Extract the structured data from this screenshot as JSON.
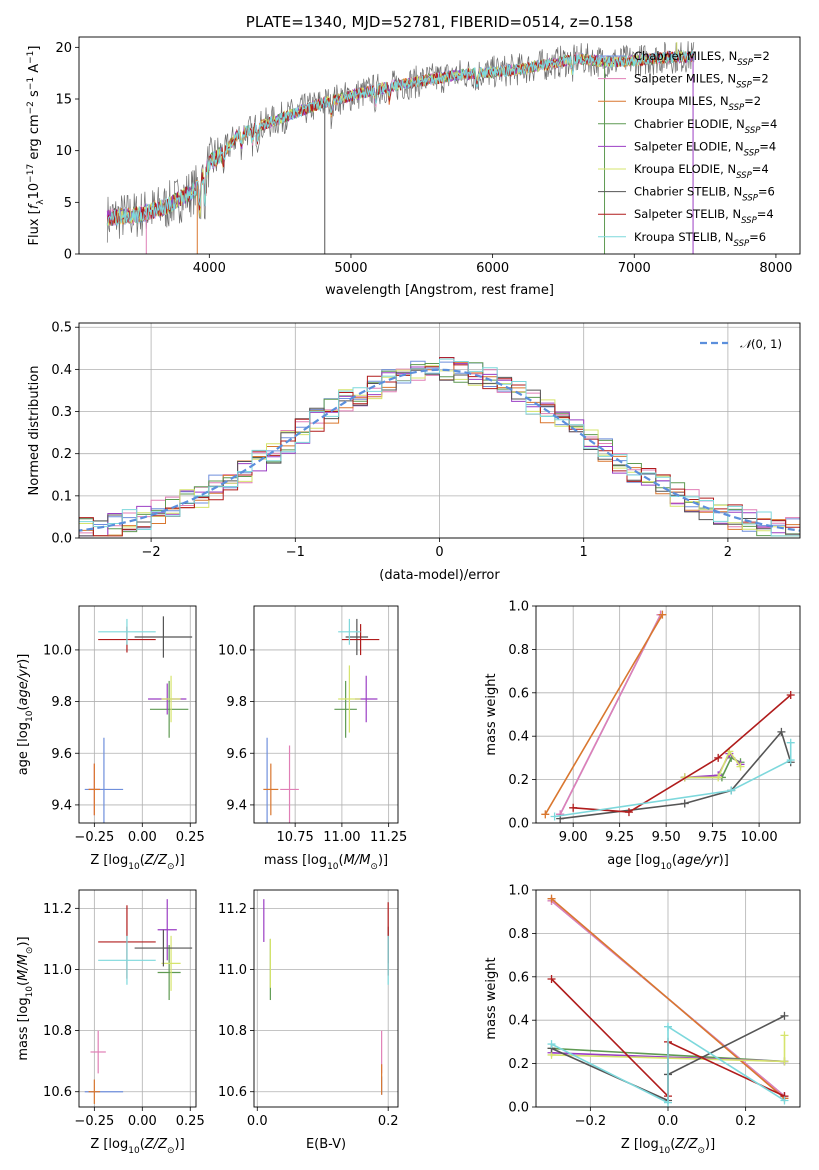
{
  "colors": {
    "Chabrier MILES": "#6f8fdc",
    "Salpeter MILES": "#e07fb6",
    "Kroupa MILES": "#d9772f",
    "Chabrier ELODIE": "#5f9a52",
    "Salpeter ELODIE": "#9b3ec4",
    "Kroupa ELODIE": "#d6e46d",
    "Chabrier STELIB": "#555555",
    "Salpeter STELIB": "#b01c1c",
    "Kroupa STELIB": "#7dd8dc"
  },
  "legend_models": [
    {
      "key": "Chabrier MILES",
      "label": "Chabrier MILES, N",
      "nssp": "2"
    },
    {
      "key": "Salpeter MILES",
      "label": "Salpeter MILES, N",
      "nssp": "2"
    },
    {
      "key": "Kroupa MILES",
      "label": "Kroupa MILES, N",
      "nssp": "2"
    },
    {
      "key": "Chabrier ELODIE",
      "label": "Chabrier ELODIE, N",
      "nssp": "4"
    },
    {
      "key": "Salpeter ELODIE",
      "label": "Salpeter ELODIE, N",
      "nssp": "4"
    },
    {
      "key": "Kroupa ELODIE",
      "label": "Kroupa ELODIE, N",
      "nssp": "4"
    },
    {
      "key": "Chabrier STELIB",
      "label": "Chabrier STELIB, N",
      "nssp": "6"
    },
    {
      "key": "Salpeter STELIB",
      "label": "Salpeter STELIB, N",
      "nssp": "4"
    },
    {
      "key": "Kroupa STELIB",
      "label": "Kroupa STELIB, N",
      "nssp": "6"
    }
  ],
  "legend_sub": "SSP",
  "chart_data": [
    {
      "id": "spectrum",
      "type": "line",
      "title": "PLATE=1340, MJD=52781, FIBERID=0514, z=0.158",
      "xlabel": "wavelength [Angstrom, rest frame]",
      "ylabel": "Flux [f_λ 10^-17 erg cm^-2 s^-1 A^-1]",
      "xlim": [
        3080,
        8170
      ],
      "ylim": [
        0,
        21
      ],
      "xticks": [
        4000,
        5000,
        6000,
        7000,
        8000
      ],
      "yticks": [
        0,
        5,
        10,
        15,
        20
      ],
      "continuum": [
        [
          3280,
          3.5
        ],
        [
          3500,
          3.8
        ],
        [
          3700,
          4.6
        ],
        [
          3900,
          6.2
        ],
        [
          4000,
          8.8
        ],
        [
          4100,
          9.8
        ],
        [
          4200,
          11.5
        ],
        [
          4400,
          12.6
        ],
        [
          4600,
          13.6
        ],
        [
          4800,
          14.6
        ],
        [
          5000,
          15.3
        ],
        [
          5200,
          16.0
        ],
        [
          5400,
          16.5
        ],
        [
          5600,
          17.0
        ],
        [
          5800,
          17.4
        ],
        [
          6000,
          17.6
        ],
        [
          6200,
          17.9
        ],
        [
          6400,
          18.4
        ],
        [
          6600,
          18.9
        ],
        [
          6800,
          18.6
        ],
        [
          7000,
          18.7
        ],
        [
          7200,
          19.0
        ],
        [
          7400,
          19.1
        ]
      ],
      "absorption_lines": [
        3934,
        3969,
        4102,
        4227,
        4304,
        4341,
        4861,
        5175,
        5270,
        5890,
        6563
      ],
      "spikes": [
        {
          "x": 4815,
          "to": 0
        },
        {
          "x": 3555,
          "to": 0
        },
        {
          "x": 3915,
          "to": 0
        },
        {
          "x": 6790,
          "to": 0
        },
        {
          "x": 7415,
          "to": 0
        },
        {
          "x": 7300,
          "to": 20.5
        }
      ]
    },
    {
      "id": "residuals",
      "type": "histogram",
      "xlabel": "(data-model)/error",
      "ylabel": "Normed distribution",
      "xlim": [
        -2.5,
        2.5
      ],
      "ylim": [
        0,
        0.51
      ],
      "xticks": [
        -2,
        -1,
        0,
        1,
        2
      ],
      "yticks": [
        0.0,
        0.1,
        0.2,
        0.3,
        0.4,
        0.5
      ],
      "bin_width": 0.1,
      "reference_curve": {
        "label": "N(0, 1)",
        "mean": 0,
        "sigma": 1,
        "color": "#5b8fdc"
      }
    },
    {
      "id": "age_Z",
      "type": "errorbar",
      "xlabel": "Z [log10(Z/Z_sun)]",
      "ylabel": "age [log10(age/yr)]",
      "xlim": [
        -0.33,
        0.28
      ],
      "ylim": [
        9.33,
        10.17
      ],
      "xticks": [
        -0.25,
        0.0,
        0.25
      ],
      "yticks": [
        9.4,
        9.6,
        9.8,
        10.0
      ],
      "points": [
        {
          "m": "Chabrier MILES",
          "x": -0.2,
          "y": 9.46,
          "xerr": 0.1,
          "yerr": 0.2
        },
        {
          "m": "Salpeter MILES",
          "x": -0.25,
          "y": 9.46,
          "xerr": 0.03,
          "yerr": 0.1
        },
        {
          "m": "Kroupa MILES",
          "x": -0.25,
          "y": 9.46,
          "xerr": 0.03,
          "yerr": 0.1
        },
        {
          "m": "Chabrier ELODIE",
          "x": 0.14,
          "y": 9.77,
          "xerr": 0.1,
          "yerr": 0.11
        },
        {
          "m": "Salpeter ELODIE",
          "x": 0.13,
          "y": 9.81,
          "xerr": 0.1,
          "yerr": 0.06
        },
        {
          "m": "Kroupa ELODIE",
          "x": 0.15,
          "y": 9.81,
          "xerr": 0.05,
          "yerr": 0.09
        },
        {
          "m": "Chabrier STELIB",
          "x": 0.11,
          "y": 10.05,
          "xerr": 0.15,
          "yerr": 0.08
        },
        {
          "m": "Salpeter STELIB",
          "x": -0.08,
          "y": 10.04,
          "xerr": 0.15,
          "yerr": 0.05
        },
        {
          "m": "Kroupa STELIB",
          "x": -0.08,
          "y": 10.07,
          "xerr": 0.15,
          "yerr": 0.05
        }
      ]
    },
    {
      "id": "age_mass",
      "type": "errorbar",
      "xlabel": "mass [log10(M/M_sun)]",
      "ylabel": "",
      "xlim": [
        10.53,
        11.3
      ],
      "ylim": [
        9.33,
        10.17
      ],
      "xticks": [
        10.75,
        11.0,
        11.25
      ],
      "yticks": [
        9.4,
        9.6,
        9.8,
        10.0
      ],
      "points": [
        {
          "m": "Chabrier MILES",
          "x": 10.6,
          "y": 9.46,
          "xerr": 0.0,
          "yerr": 0.2
        },
        {
          "m": "Salpeter MILES",
          "x": 10.72,
          "y": 9.46,
          "xerr": 0.05,
          "yerr": 0.17
        },
        {
          "m": "Kroupa MILES",
          "x": 10.62,
          "y": 9.46,
          "xerr": 0.04,
          "yerr": 0.1
        },
        {
          "m": "Chabrier ELODIE",
          "x": 11.02,
          "y": 9.77,
          "xerr": 0.06,
          "yerr": 0.11
        },
        {
          "m": "Salpeter ELODIE",
          "x": 11.13,
          "y": 9.81,
          "xerr": 0.06,
          "yerr": 0.09
        },
        {
          "m": "Kroupa ELODIE",
          "x": 11.04,
          "y": 9.81,
          "xerr": 0.06,
          "yerr": 0.13
        },
        {
          "m": "Chabrier STELIB",
          "x": 11.08,
          "y": 10.05,
          "xerr": 0.06,
          "yerr": 0.07
        },
        {
          "m": "Salpeter STELIB",
          "x": 11.1,
          "y": 10.04,
          "xerr": 0.1,
          "yerr": 0.06
        },
        {
          "m": "Kroupa STELIB",
          "x": 11.04,
          "y": 10.07,
          "xerr": 0.06,
          "yerr": 0.05
        }
      ]
    },
    {
      "id": "weight_age",
      "type": "line",
      "xlabel": "age [log10(age/yr)]",
      "ylabel": "mass weight",
      "xlim": [
        8.8,
        10.22
      ],
      "ylim": [
        0,
        1.0
      ],
      "xticks": [
        9.0,
        9.25,
        9.5,
        9.75,
        10.0
      ],
      "yticks": [
        0.0,
        0.2,
        0.4,
        0.6,
        0.8,
        1.0
      ],
      "series": [
        {
          "m": "Chabrier MILES",
          "points": [
            [
              8.93,
              0.04
            ],
            [
              9.47,
              0.96
            ]
          ]
        },
        {
          "m": "Salpeter MILES",
          "points": [
            [
              8.93,
              0.04
            ],
            [
              9.47,
              0.96
            ]
          ]
        },
        {
          "m": "Kroupa MILES",
          "points": [
            [
              8.85,
              0.04
            ],
            [
              9.48,
              0.96
            ]
          ]
        },
        {
          "m": "Chabrier ELODIE",
          "points": [
            [
              9.6,
              0.21
            ],
            [
              9.8,
              0.21
            ],
            [
              9.85,
              0.3
            ],
            [
              9.9,
              0.28
            ]
          ]
        },
        {
          "m": "Salpeter ELODIE",
          "points": [
            [
              9.6,
              0.21
            ],
            [
              9.78,
              0.22
            ],
            [
              9.84,
              0.32
            ],
            [
              9.9,
              0.27
            ]
          ]
        },
        {
          "m": "Kroupa ELODIE",
          "points": [
            [
              9.6,
              0.21
            ],
            [
              9.78,
              0.21
            ],
            [
              9.84,
              0.33
            ],
            [
              9.9,
              0.26
            ]
          ]
        },
        {
          "m": "Chabrier STELIB",
          "points": [
            [
              8.93,
              0.02
            ],
            [
              9.6,
              0.09
            ],
            [
              9.85,
              0.15
            ],
            [
              10.12,
              0.42
            ],
            [
              10.17,
              0.28
            ]
          ]
        },
        {
          "m": "Salpeter STELIB",
          "points": [
            [
              9.0,
              0.07
            ],
            [
              9.3,
              0.05
            ],
            [
              9.78,
              0.3
            ],
            [
              10.17,
              0.59
            ]
          ]
        },
        {
          "m": "Kroupa STELIB",
          "points": [
            [
              8.9,
              0.03
            ],
            [
              9.85,
              0.15
            ],
            [
              10.17,
              0.29
            ],
            [
              10.17,
              0.37
            ]
          ]
        }
      ]
    },
    {
      "id": "mass_Z",
      "type": "errorbar",
      "xlabel": "Z [log10(Z/Z_sun)]",
      "ylabel": "mass [log10(M/M_sun)]",
      "xlim": [
        -0.33,
        0.28
      ],
      "ylim": [
        10.55,
        11.26
      ],
      "xticks": [
        -0.25,
        0.0,
        0.25
      ],
      "yticks": [
        10.6,
        10.8,
        11.0,
        11.2
      ],
      "points": [
        {
          "m": "Chabrier MILES",
          "x": -0.2,
          "y": 10.6,
          "xerr": 0.1,
          "yerr": 0.0
        },
        {
          "m": "Salpeter MILES",
          "x": -0.23,
          "y": 10.73,
          "xerr": 0.04,
          "yerr": 0.07
        },
        {
          "m": "Kroupa MILES",
          "x": -0.25,
          "y": 10.6,
          "xerr": 0.03,
          "yerr": 0.04
        },
        {
          "m": "Chabrier ELODIE",
          "x": 0.14,
          "y": 10.99,
          "xerr": 0.06,
          "yerr": 0.09
        },
        {
          "m": "Salpeter ELODIE",
          "x": 0.13,
          "y": 11.13,
          "xerr": 0.05,
          "yerr": 0.1
        },
        {
          "m": "Kroupa ELODIE",
          "x": 0.15,
          "y": 11.02,
          "xerr": 0.05,
          "yerr": 0.09
        },
        {
          "m": "Chabrier STELIB",
          "x": 0.11,
          "y": 11.07,
          "xerr": 0.15,
          "yerr": 0.06
        },
        {
          "m": "Salpeter STELIB",
          "x": -0.08,
          "y": 11.09,
          "xerr": 0.15,
          "yerr": 0.12
        },
        {
          "m": "Kroupa STELIB",
          "x": -0.08,
          "y": 11.03,
          "xerr": 0.15,
          "yerr": 0.08
        }
      ]
    },
    {
      "id": "mass_EBV",
      "type": "errorbar",
      "xlabel": "E(B-V)",
      "ylabel": "",
      "xlim": [
        -0.005,
        0.215
      ],
      "ylim": [
        10.55,
        11.26
      ],
      "xticks": [
        0.0,
        0.2
      ],
      "yticks": [
        10.6,
        10.8,
        11.0,
        11.2
      ],
      "points": [
        {
          "m": "Chabrier MILES",
          "x": 0.19,
          "y": 10.62,
          "xerr": 0.0,
          "yerr": 0.03
        },
        {
          "m": "Salpeter MILES",
          "x": 0.19,
          "y": 10.73,
          "xerr": 0.0,
          "yerr": 0.07
        },
        {
          "m": "Kroupa MILES",
          "x": 0.19,
          "y": 10.64,
          "xerr": 0.0,
          "yerr": 0.05
        },
        {
          "m": "Chabrier ELODIE",
          "x": 0.02,
          "y": 11.0,
          "xerr": 0.0,
          "yerr": 0.1
        },
        {
          "m": "Salpeter ELODIE",
          "x": 0.01,
          "y": 11.16,
          "xerr": 0.0,
          "yerr": 0.07
        },
        {
          "m": "Kroupa ELODIE",
          "x": 0.02,
          "y": 11.02,
          "xerr": 0.0,
          "yerr": 0.08
        },
        {
          "m": "Chabrier STELIB",
          "x": 0.2,
          "y": 11.08,
          "xerr": 0.0,
          "yerr": 0.06
        },
        {
          "m": "Salpeter STELIB",
          "x": 0.2,
          "y": 11.1,
          "xerr": 0.0,
          "yerr": 0.12
        },
        {
          "m": "Kroupa STELIB",
          "x": 0.2,
          "y": 11.03,
          "xerr": 0.0,
          "yerr": 0.08
        }
      ]
    },
    {
      "id": "weight_Z",
      "type": "line",
      "xlabel": "Z [log10(Z/Z_sun)]",
      "ylabel": "mass weight",
      "xlim": [
        -0.34,
        0.34
      ],
      "ylim": [
        0,
        1.0
      ],
      "xticks": [
        -0.2,
        0.0,
        0.2
      ],
      "yticks": [
        0.0,
        0.2,
        0.4,
        0.6,
        0.8,
        1.0
      ],
      "series": [
        {
          "m": "Chabrier MILES",
          "points": [
            [
              -0.3,
              0.95
            ],
            [
              0.3,
              0.05
            ]
          ]
        },
        {
          "m": "Salpeter MILES",
          "points": [
            [
              -0.3,
              0.95
            ],
            [
              0.3,
              0.05
            ]
          ]
        },
        {
          "m": "Kroupa MILES",
          "points": [
            [
              -0.3,
              0.96
            ],
            [
              0.3,
              0.04
            ]
          ]
        },
        {
          "m": "Chabrier ELODIE",
          "points": [
            [
              -0.3,
              0.27
            ],
            [
              0.3,
              0.21
            ]
          ]
        },
        {
          "m": "Salpeter ELODIE",
          "points": [
            [
              -0.3,
              0.25
            ],
            [
              0.3,
              0.21
            ]
          ]
        },
        {
          "m": "Kroupa ELODIE",
          "points": [
            [
              -0.3,
              0.24
            ],
            [
              0.3,
              0.21
            ],
            [
              0.3,
              0.33
            ]
          ]
        },
        {
          "m": "Chabrier STELIB",
          "points": [
            [
              -0.3,
              0.27
            ],
            [
              0.0,
              0.03
            ],
            [
              0.0,
              0.15
            ],
            [
              0.3,
              0.42
            ]
          ]
        },
        {
          "m": "Salpeter STELIB",
          "points": [
            [
              -0.3,
              0.59
            ],
            [
              0.0,
              0.05
            ],
            [
              0.0,
              0.3
            ],
            [
              0.3,
              0.05
            ]
          ]
        },
        {
          "m": "Kroupa STELIB",
          "points": [
            [
              -0.3,
              0.29
            ],
            [
              0.0,
              0.02
            ],
            [
              0.0,
              0.37
            ],
            [
              0.3,
              0.03
            ]
          ]
        }
      ]
    }
  ]
}
